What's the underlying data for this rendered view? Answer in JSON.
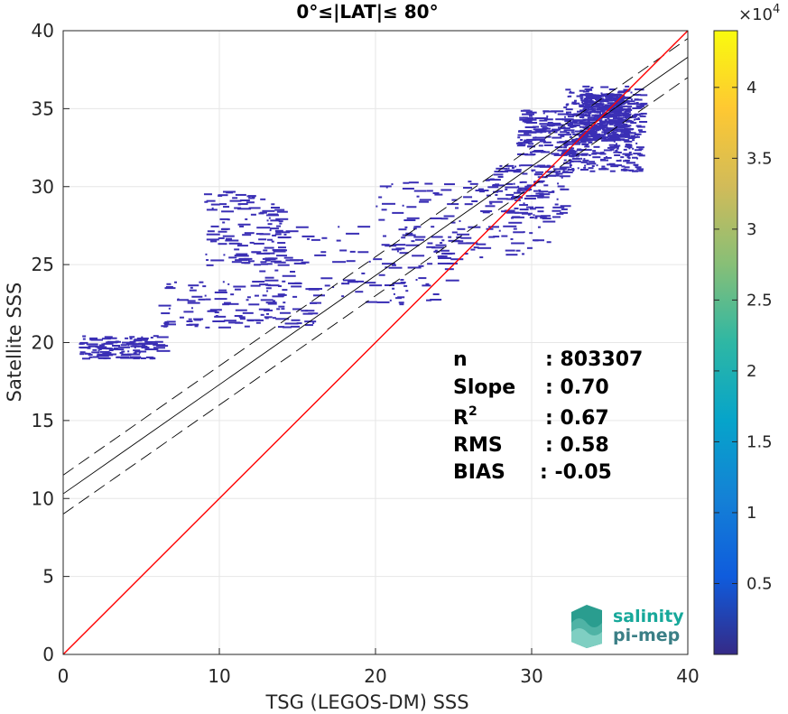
{
  "chart_data": {
    "type": "scatter",
    "subtype": "density-scatter",
    "title": "0°≤|LAT|≤ 80°",
    "xlabel": "TSG (LEGOS-DM) SSS",
    "ylabel": "Satellite SSS",
    "xlim": [
      0,
      40
    ],
    "ylim": [
      0,
      40
    ],
    "xticks": [
      0,
      10,
      20,
      30,
      40
    ],
    "yticks": [
      0,
      5,
      10,
      15,
      20,
      25,
      30,
      35,
      40
    ],
    "grid": true,
    "stats": [
      {
        "key": "n",
        "sep": ":",
        "value": "803307"
      },
      {
        "key": "Slope",
        "sep": ":",
        "value": "0.70"
      },
      {
        "key": "R",
        "sup": "2",
        "sep": ":",
        "value": "0.67"
      },
      {
        "key": "RMS",
        "sep": ":",
        "value": "0.58"
      },
      {
        "key": "BIAS",
        "sep": ":",
        "value": "-0.05"
      }
    ],
    "lines": {
      "identity": {
        "color": "#ff0000",
        "intercept": 0,
        "slope": 1
      },
      "fit": {
        "color": "#000000",
        "intercept": 10.3,
        "slope": 0.7
      },
      "fit_upper": {
        "color": "#000000",
        "intercept": 11.5,
        "slope": 0.7,
        "dash": true
      },
      "fit_lower": {
        "color": "#000000",
        "intercept": 9.0,
        "slope": 0.7,
        "dash": true
      }
    },
    "colorbar": {
      "multiplier": "×10",
      "exponent": "4",
      "ticks": [
        0.5,
        1,
        1.5,
        2,
        2.5,
        3,
        3.5,
        4
      ],
      "tick_labels": [
        "0.5",
        "1",
        "1.5",
        "2",
        "2.5",
        "3",
        "3.5",
        "4"
      ],
      "range": [
        0,
        4.4
      ],
      "colormap": "parula",
      "colors": [
        "#352a87",
        "#0f5cdd",
        "#1481d6",
        "#06a4ca",
        "#2eb7a4",
        "#87bf77",
        "#d1bb59",
        "#fec832",
        "#f9fb0e"
      ]
    },
    "density_clusters": [
      {
        "x": [
          32,
          37
        ],
        "y": [
          31,
          36.5
        ]
      },
      {
        "x": [
          33,
          36
        ],
        "y": [
          33,
          36
        ]
      },
      {
        "x": [
          27,
          32
        ],
        "y": [
          28,
          31.5
        ]
      },
      {
        "x": [
          20,
          31
        ],
        "y": [
          25.5,
          30.5
        ]
      },
      {
        "x": [
          12,
          25
        ],
        "y": [
          22.5,
          27.5
        ]
      },
      {
        "x": [
          6,
          16
        ],
        "y": [
          21,
          24
        ]
      },
      {
        "x": [
          1,
          6
        ],
        "y": [
          19,
          20.5
        ]
      },
      {
        "x": [
          9,
          14
        ],
        "y": [
          25,
          29.8
        ]
      },
      {
        "x": [
          29,
          33
        ],
        "y": [
          32,
          35
        ]
      }
    ],
    "point_color": "#3a2fb5"
  },
  "logo": {
    "line1": "salinity",
    "line2": "pi-mep",
    "color_line1": "#17a89a",
    "color_line2": "#3b7f86"
  }
}
